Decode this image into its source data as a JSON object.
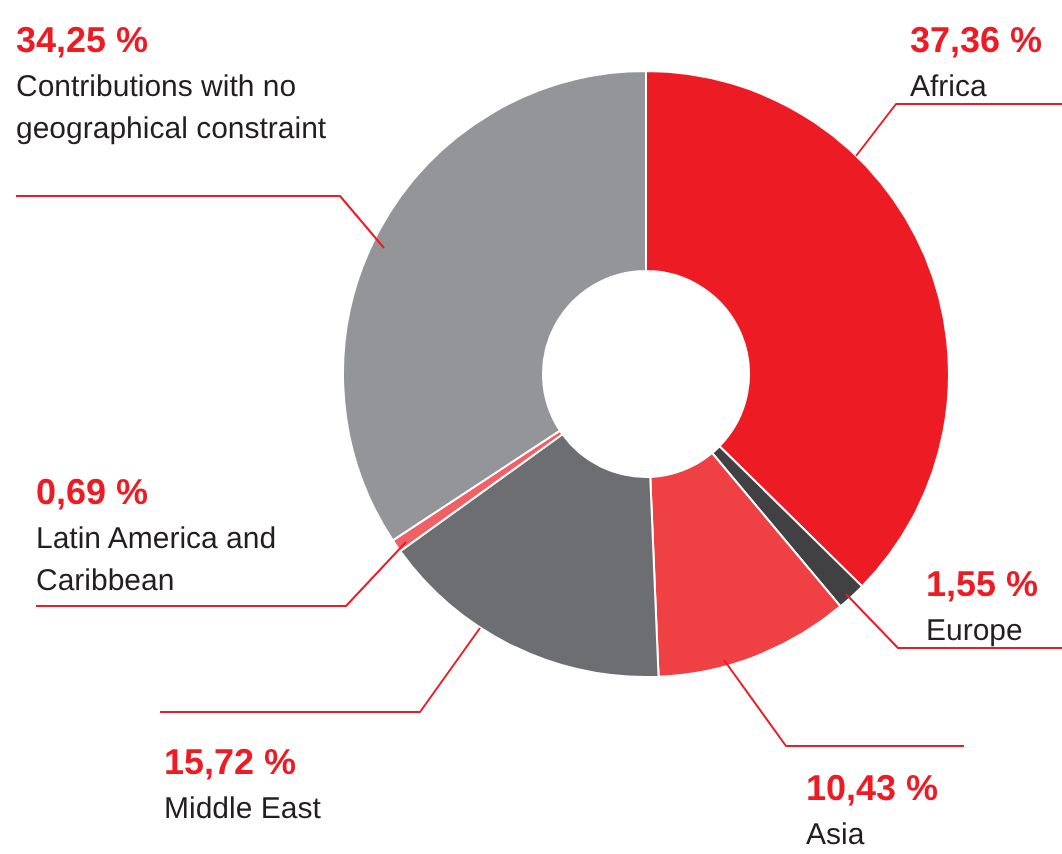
{
  "chart_data": {
    "type": "donut",
    "categories": [
      "Africa",
      "Europe",
      "Asia",
      "Middle East",
      "Latin America and Caribbean",
      "Contributions with no geographical constraint"
    ],
    "values": [
      37.36,
      1.55,
      10.43,
      15.72,
      0.69,
      34.25
    ],
    "colors": [
      "#ed1c24",
      "#414042",
      "#ef4044",
      "#6d6e71",
      "#f16065",
      "#939598"
    ],
    "value_labels": [
      "37,36 %",
      "1,55 %",
      "10,43 %",
      "15,72 %",
      "0,69 %",
      "34,25 %"
    ],
    "legend": false
  }
}
